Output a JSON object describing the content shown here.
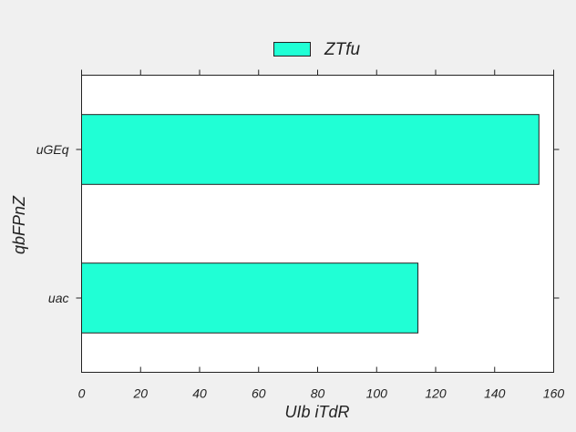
{
  "chart_data": {
    "type": "bar",
    "orientation": "horizontal",
    "categories": [
      "uac",
      "uGEq"
    ],
    "series": [
      {
        "name": "ZTfu",
        "values": [
          114,
          155
        ],
        "color": "#20ffd5"
      }
    ],
    "xlabel": "UIb iTdR",
    "ylabel": "qbFPnZ",
    "xlim": [
      0,
      160
    ],
    "xticks": [
      "0",
      "20",
      "40",
      "60",
      "80",
      "100",
      "120",
      "140",
      "160"
    ],
    "grid": false,
    "legend_position": "top-center"
  }
}
